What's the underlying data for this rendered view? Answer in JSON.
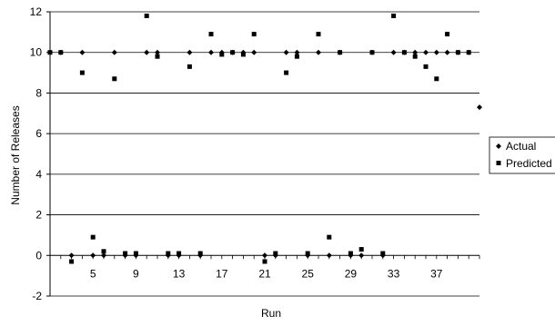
{
  "chart_data": {
    "type": "scatter",
    "xlabel": "Run",
    "ylabel": "Number of Releases",
    "xlim": [
      1,
      41
    ],
    "ylim": [
      -2,
      12
    ],
    "x_ticks": [
      5,
      9,
      13,
      17,
      21,
      25,
      29,
      33,
      37
    ],
    "y_ticks": [
      -2,
      0,
      2,
      4,
      6,
      8,
      10,
      12
    ],
    "grid": "horizontal",
    "legend_position": "right",
    "series": [
      {
        "name": "Actual",
        "marker": "diamond",
        "color": "#000000",
        "points": [
          [
            1,
            10
          ],
          [
            2,
            10
          ],
          [
            3,
            0
          ],
          [
            4,
            10
          ],
          [
            5,
            0
          ],
          [
            6,
            0
          ],
          [
            7,
            10
          ],
          [
            8,
            0
          ],
          [
            9,
            0
          ],
          [
            10,
            10
          ],
          [
            11,
            10
          ],
          [
            12,
            0
          ],
          [
            13,
            0
          ],
          [
            14,
            10
          ],
          [
            15,
            0
          ],
          [
            16,
            10
          ],
          [
            17,
            10
          ],
          [
            18,
            10
          ],
          [
            19,
            10
          ],
          [
            20,
            10
          ],
          [
            21,
            0
          ],
          [
            22,
            0
          ],
          [
            23,
            10
          ],
          [
            24,
            10
          ],
          [
            25,
            0
          ],
          [
            26,
            10
          ],
          [
            27,
            0
          ],
          [
            28,
            10
          ],
          [
            29,
            0
          ],
          [
            30,
            0
          ],
          [
            31,
            10
          ],
          [
            32,
            0
          ],
          [
            33,
            10
          ],
          [
            34,
            10
          ],
          [
            35,
            10
          ],
          [
            36,
            10
          ],
          [
            37,
            10
          ],
          [
            38,
            10
          ],
          [
            39,
            10
          ],
          [
            40,
            10
          ],
          [
            41,
            7.3
          ]
        ]
      },
      {
        "name": "Predicted",
        "marker": "square",
        "color": "#000000",
        "points": [
          [
            1,
            10
          ],
          [
            2,
            10
          ],
          [
            3,
            -0.3
          ],
          [
            4,
            9
          ],
          [
            5,
            0.9
          ],
          [
            6,
            0.2
          ],
          [
            7,
            8.7
          ],
          [
            8,
            0.1
          ],
          [
            9,
            0.1
          ],
          [
            10,
            11.8
          ],
          [
            11,
            9.8
          ],
          [
            12,
            0.1
          ],
          [
            13,
            0.1
          ],
          [
            14,
            9.3
          ],
          [
            15,
            0.1
          ],
          [
            16,
            10.9
          ],
          [
            17,
            9.9
          ],
          [
            18,
            10
          ],
          [
            19,
            9.9
          ],
          [
            20,
            10.9
          ],
          [
            21,
            -0.3
          ],
          [
            22,
            0.1
          ],
          [
            23,
            9
          ],
          [
            24,
            9.8
          ],
          [
            25,
            0.1
          ],
          [
            26,
            10.9
          ],
          [
            27,
            0.9
          ],
          [
            28,
            10
          ],
          [
            29,
            0.1
          ],
          [
            30,
            0.3
          ],
          [
            31,
            10
          ],
          [
            32,
            0.1
          ],
          [
            33,
            11.8
          ],
          [
            34,
            10
          ],
          [
            35,
            9.8
          ],
          [
            36,
            9.3
          ],
          [
            37,
            8.7
          ],
          [
            38,
            10.9
          ],
          [
            39,
            10
          ],
          [
            40,
            10
          ]
        ]
      }
    ]
  }
}
